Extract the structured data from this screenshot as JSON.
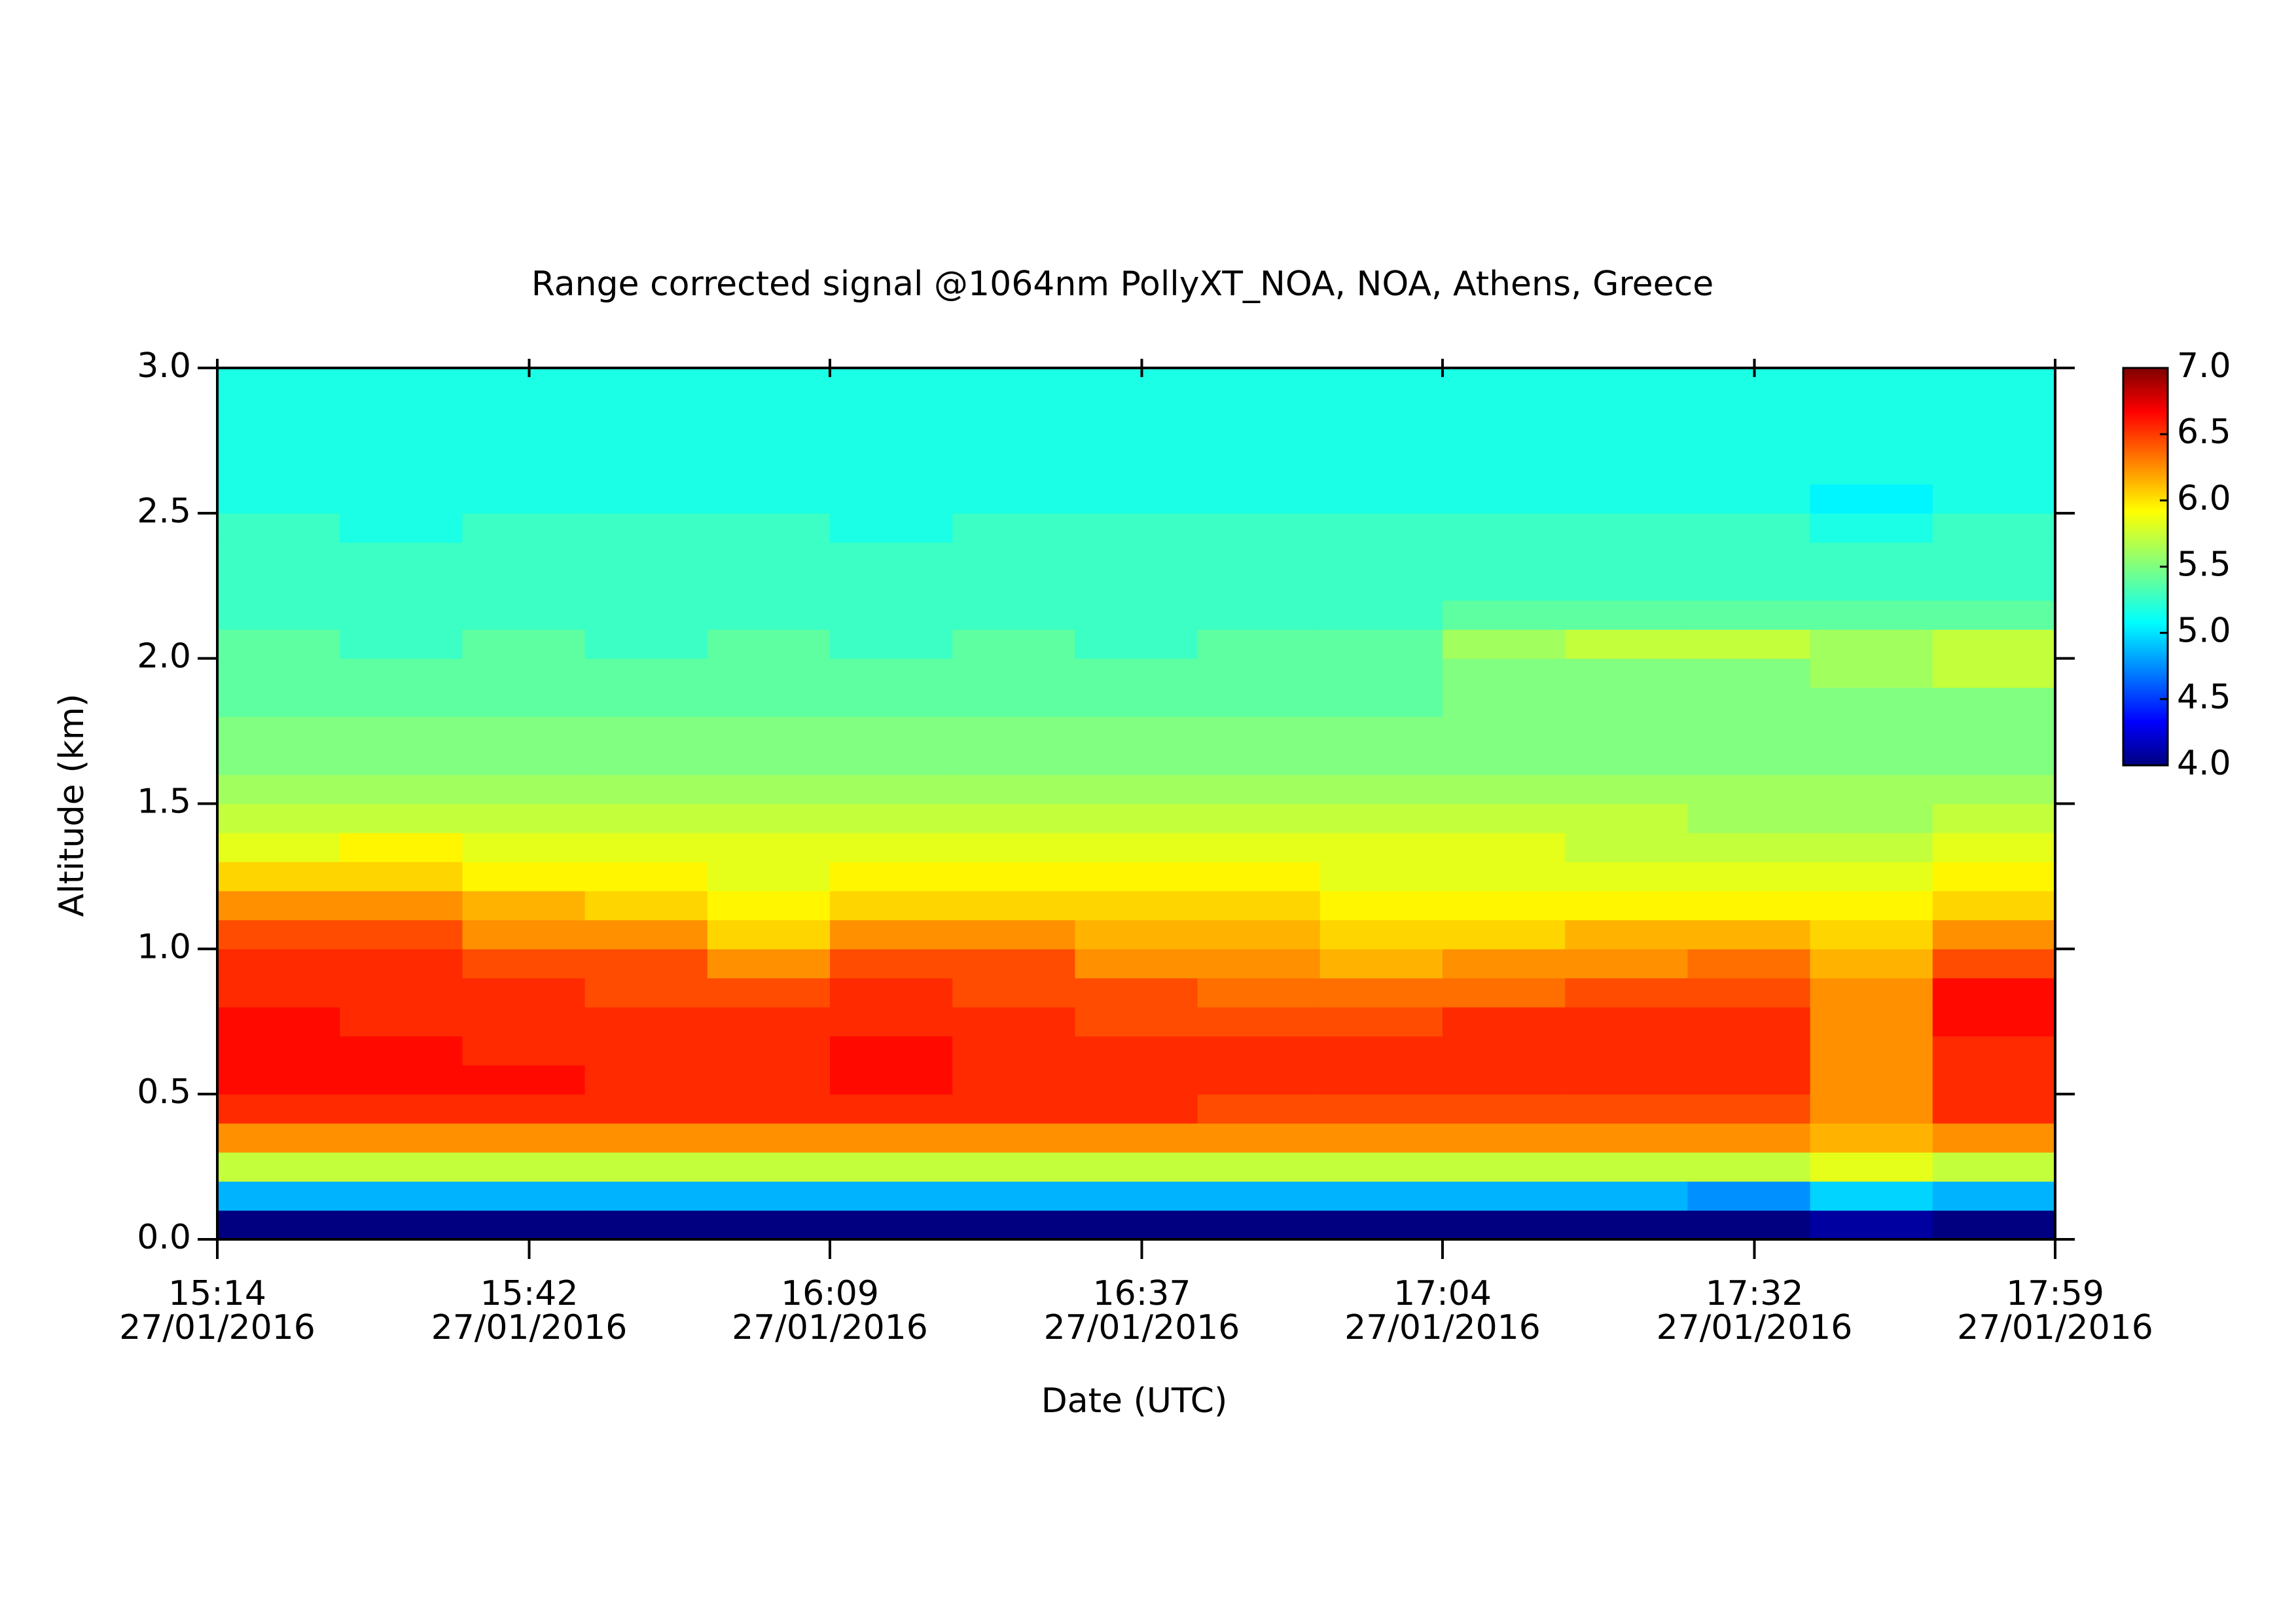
{
  "chart_data": {
    "type": "heatmap",
    "title": "Range corrected signal @1064nm  PollyXT_NOA, NOA, Athens, Greece",
    "xlabel": "Date (UTC)",
    "ylabel": "Altitude (km)",
    "colormap": "jet",
    "xlim": [
      "2016-01-27T15:14",
      "2016-01-27T17:59"
    ],
    "xticks": [
      {
        "value": "2016-01-27T15:14",
        "label": "15:14 27/01/2016"
      },
      {
        "value": "2016-01-27T15:42",
        "label": "15:42 27/01/2016"
      },
      {
        "value": "2016-01-27T16:09",
        "label": "16:09 27/01/2016"
      },
      {
        "value": "2016-01-27T16:37",
        "label": "16:37 27/01/2016"
      },
      {
        "value": "2016-01-27T17:04",
        "label": "17:04 27/01/2016"
      },
      {
        "value": "2016-01-27T17:32",
        "label": "17:32 27/01/2016"
      },
      {
        "value": "2016-01-27T17:59",
        "label": "17:59 27/01/2016"
      }
    ],
    "ylim": [
      0,
      3
    ],
    "yticks": [
      {
        "value": 0,
        "label": "0.0"
      },
      {
        "value": 0.5,
        "label": "0.5"
      },
      {
        "value": 1,
        "label": "1.0"
      },
      {
        "value": 1.5,
        "label": "1.5"
      },
      {
        "value": 2,
        "label": "2.0"
      },
      {
        "value": 2.5,
        "label": "2.5"
      },
      {
        "value": 3,
        "label": "3.0"
      }
    ],
    "zlim": [
      4,
      7
    ],
    "zticks": [
      {
        "value": 4,
        "label": "4.0"
      },
      {
        "value": 4.5,
        "label": "4.5"
      },
      {
        "value": 5,
        "label": "5.0"
      },
      {
        "value": 5.5,
        "label": "5.5"
      },
      {
        "value": 6,
        "label": "6.0"
      },
      {
        "value": 6.5,
        "label": "6.5"
      },
      {
        "value": 7,
        "label": "7.0"
      }
    ],
    "x": [
      "2016-01-27T15:14",
      "2016-01-27T15:25",
      "2016-01-27T15:36",
      "2016-01-27T15:47",
      "2016-01-27T15:58",
      "2016-01-27T16:09",
      "2016-01-27T16:20",
      "2016-01-27T16:31",
      "2016-01-27T16:42",
      "2016-01-27T16:53",
      "2016-01-27T17:04",
      "2016-01-27T17:15",
      "2016-01-27T17:26",
      "2016-01-27T17:37",
      "2016-01-27T17:48"
    ],
    "y": [
      0,
      0.1,
      0.2,
      0.3,
      0.4,
      0.5,
      0.6,
      0.7,
      0.8,
      0.9,
      1.0,
      1.1,
      1.2,
      1.3,
      1.4,
      1.5,
      1.6,
      1.7,
      1.8,
      1.9,
      2.0,
      2.1,
      2.2,
      2.3,
      2.4,
      2.5,
      2.6,
      2.7,
      2.8,
      2.9
    ],
    "values": [
      [
        4.0,
        4.9,
        5.7,
        6.2,
        6.5,
        6.6,
        6.6,
        6.6,
        6.5,
        6.5,
        6.4,
        6.2,
        6.0,
        5.8,
        5.7,
        5.6,
        5.5,
        5.5,
        5.4,
        5.4,
        5.4,
        5.3,
        5.3,
        5.3,
        5.3,
        5.2,
        5.2,
        5.2,
        5.2,
        5.2
      ],
      [
        4.0,
        4.9,
        5.7,
        6.2,
        6.5,
        6.6,
        6.6,
        6.5,
        6.5,
        6.5,
        6.4,
        6.2,
        6.0,
        5.9,
        5.7,
        5.6,
        5.5,
        5.5,
        5.4,
        5.4,
        5.3,
        5.3,
        5.3,
        5.3,
        5.2,
        5.2,
        5.2,
        5.2,
        5.2,
        5.2
      ],
      [
        4.0,
        4.9,
        5.7,
        6.2,
        6.5,
        6.6,
        6.5,
        6.5,
        6.5,
        6.4,
        6.2,
        6.1,
        5.9,
        5.8,
        5.7,
        5.6,
        5.5,
        5.5,
        5.4,
        5.4,
        5.4,
        5.3,
        5.3,
        5.3,
        5.3,
        5.2,
        5.2,
        5.2,
        5.2,
        5.2
      ],
      [
        4.0,
        4.9,
        5.7,
        6.2,
        6.5,
        6.5,
        6.5,
        6.5,
        6.4,
        6.4,
        6.2,
        6.0,
        5.9,
        5.8,
        5.7,
        5.6,
        5.5,
        5.5,
        5.4,
        5.4,
        5.3,
        5.3,
        5.3,
        5.3,
        5.3,
        5.2,
        5.2,
        5.2,
        5.2,
        5.2
      ],
      [
        4.0,
        4.9,
        5.7,
        6.2,
        6.5,
        6.5,
        6.5,
        6.5,
        6.4,
        6.2,
        6.0,
        5.9,
        5.8,
        5.8,
        5.7,
        5.6,
        5.5,
        5.5,
        5.4,
        5.4,
        5.4,
        5.3,
        5.3,
        5.3,
        5.3,
        5.2,
        5.2,
        5.2,
        5.2,
        5.2
      ],
      [
        4.0,
        4.9,
        5.7,
        6.2,
        6.5,
        6.6,
        6.6,
        6.5,
        6.5,
        6.4,
        6.2,
        6.0,
        5.9,
        5.8,
        5.7,
        5.6,
        5.5,
        5.5,
        5.4,
        5.4,
        5.3,
        5.3,
        5.3,
        5.3,
        5.2,
        5.2,
        5.2,
        5.2,
        5.2,
        5.2
      ],
      [
        4.0,
        4.9,
        5.7,
        6.2,
        6.5,
        6.5,
        6.5,
        6.5,
        6.4,
        6.4,
        6.2,
        6.0,
        5.9,
        5.8,
        5.7,
        5.6,
        5.5,
        5.5,
        5.4,
        5.4,
        5.4,
        5.3,
        5.3,
        5.3,
        5.3,
        5.2,
        5.2,
        5.2,
        5.2,
        5.2
      ],
      [
        4.0,
        4.9,
        5.7,
        6.2,
        6.5,
        6.5,
        6.5,
        6.4,
        6.4,
        6.2,
        6.1,
        6.0,
        5.9,
        5.8,
        5.7,
        5.6,
        5.5,
        5.5,
        5.4,
        5.4,
        5.3,
        5.3,
        5.3,
        5.3,
        5.3,
        5.2,
        5.2,
        5.2,
        5.2,
        5.2
      ],
      [
        4.0,
        4.9,
        5.7,
        6.2,
        6.4,
        6.5,
        6.5,
        6.4,
        6.3,
        6.2,
        6.1,
        6.0,
        5.9,
        5.8,
        5.7,
        5.6,
        5.5,
        5.5,
        5.4,
        5.4,
        5.4,
        5.3,
        5.3,
        5.3,
        5.3,
        5.2,
        5.2,
        5.2,
        5.2,
        5.2
      ],
      [
        4.0,
        4.9,
        5.7,
        6.2,
        6.4,
        6.5,
        6.5,
        6.4,
        6.3,
        6.1,
        6.0,
        5.9,
        5.8,
        5.8,
        5.7,
        5.6,
        5.5,
        5.5,
        5.4,
        5.4,
        5.4,
        5.3,
        5.3,
        5.3,
        5.3,
        5.2,
        5.2,
        5.2,
        5.2,
        5.2
      ],
      [
        4.0,
        4.9,
        5.7,
        6.2,
        6.4,
        6.5,
        6.5,
        6.5,
        6.3,
        6.2,
        6.0,
        5.9,
        5.8,
        5.8,
        5.7,
        5.6,
        5.5,
        5.5,
        5.5,
        5.5,
        5.6,
        5.4,
        5.3,
        5.3,
        5.3,
        5.2,
        5.2,
        5.2,
        5.2,
        5.2
      ],
      [
        4.0,
        4.9,
        5.7,
        6.2,
        6.4,
        6.5,
        6.5,
        6.5,
        6.4,
        6.2,
        6.1,
        5.9,
        5.8,
        5.7,
        5.7,
        5.6,
        5.5,
        5.5,
        5.5,
        5.5,
        5.7,
        5.4,
        5.3,
        5.3,
        5.3,
        5.2,
        5.2,
        5.2,
        5.2,
        5.2
      ],
      [
        4.0,
        4.8,
        5.7,
        6.2,
        6.4,
        6.5,
        6.5,
        6.5,
        6.4,
        6.3,
        6.1,
        5.9,
        5.8,
        5.7,
        5.6,
        5.6,
        5.5,
        5.5,
        5.5,
        5.5,
        5.7,
        5.4,
        5.3,
        5.3,
        5.3,
        5.2,
        5.2,
        5.2,
        5.2,
        5.2
      ],
      [
        4.1,
        5.0,
        5.8,
        6.1,
        6.2,
        6.2,
        6.2,
        6.2,
        6.2,
        6.1,
        6.0,
        5.9,
        5.8,
        5.7,
        5.6,
        5.6,
        5.5,
        5.5,
        5.5,
        5.6,
        5.6,
        5.4,
        5.3,
        5.3,
        5.2,
        5.1,
        5.2,
        5.2,
        5.2,
        5.2
      ],
      [
        4.0,
        4.9,
        5.7,
        6.2,
        6.5,
        6.5,
        6.5,
        6.6,
        6.6,
        6.4,
        6.2,
        6.0,
        5.9,
        5.8,
        5.7,
        5.6,
        5.5,
        5.5,
        5.5,
        5.7,
        5.7,
        5.4,
        5.3,
        5.3,
        5.3,
        5.2,
        5.2,
        5.2,
        5.2,
        5.2
      ]
    ]
  }
}
